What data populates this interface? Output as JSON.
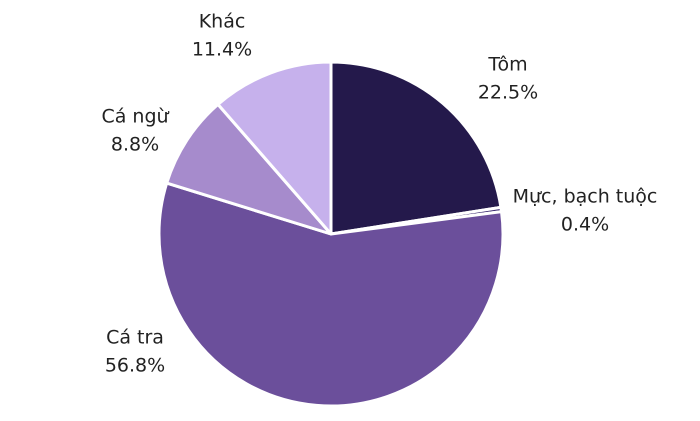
{
  "chart_data": {
    "type": "pie",
    "categories": [
      "Tôm",
      "Mực, bạch tuộc",
      "Cá tra",
      "Cá ngừ",
      "Khác"
    ],
    "values": [
      22.5,
      0.4,
      56.8,
      8.8,
      11.4
    ],
    "value_labels": [
      "22.5%",
      "0.4%",
      "56.8%",
      "8.8%",
      "11.4%"
    ],
    "colors": [
      "#24194b",
      "#3b2b70",
      "#6b4f9b",
      "#a68bcc",
      "#c6b1ec"
    ]
  }
}
